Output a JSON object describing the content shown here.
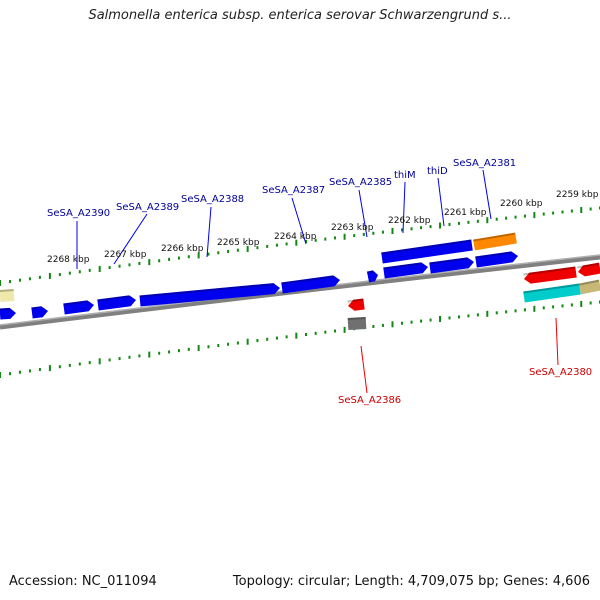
{
  "title": "Salmonella enterica subsp. enterica serovar Schwarzengrund s...",
  "footer": {
    "accession": "Accession: NC_011094",
    "summary": "Topology: circular; Length: 4,709,075 bp; Genes: 4,606"
  },
  "colors": {
    "forward_gene": "#0000ee",
    "reverse_gene": "#ee0000",
    "orange_gene": "#ff8800",
    "teal_gene": "#00cccc",
    "tan_gene": "#c8b878",
    "pale_gene": "#eee8aa",
    "gray_gene": "#707070",
    "backbone": "#808080",
    "tick": "#118811",
    "forward_label": "#000099",
    "reverse_label": "#cc0000"
  },
  "tick_labels": [
    "2268 kbp",
    "2267 kbp",
    "2266 kbp",
    "2265 kbp",
    "2264 kbp",
    "2263 kbp",
    "2262 kbp",
    "2261 kbp",
    "2260 kbp",
    "2259 kbp"
  ],
  "forward_labels": [
    "SeSA_A2390",
    "SeSA_A2389",
    "SeSA_A2388",
    "SeSA_A2387",
    "SeSA_A2385",
    "thiM",
    "thiD",
    "SeSA_A2381"
  ],
  "reverse_labels": [
    "SeSA_A2386",
    "SeSA_A2380"
  ]
}
